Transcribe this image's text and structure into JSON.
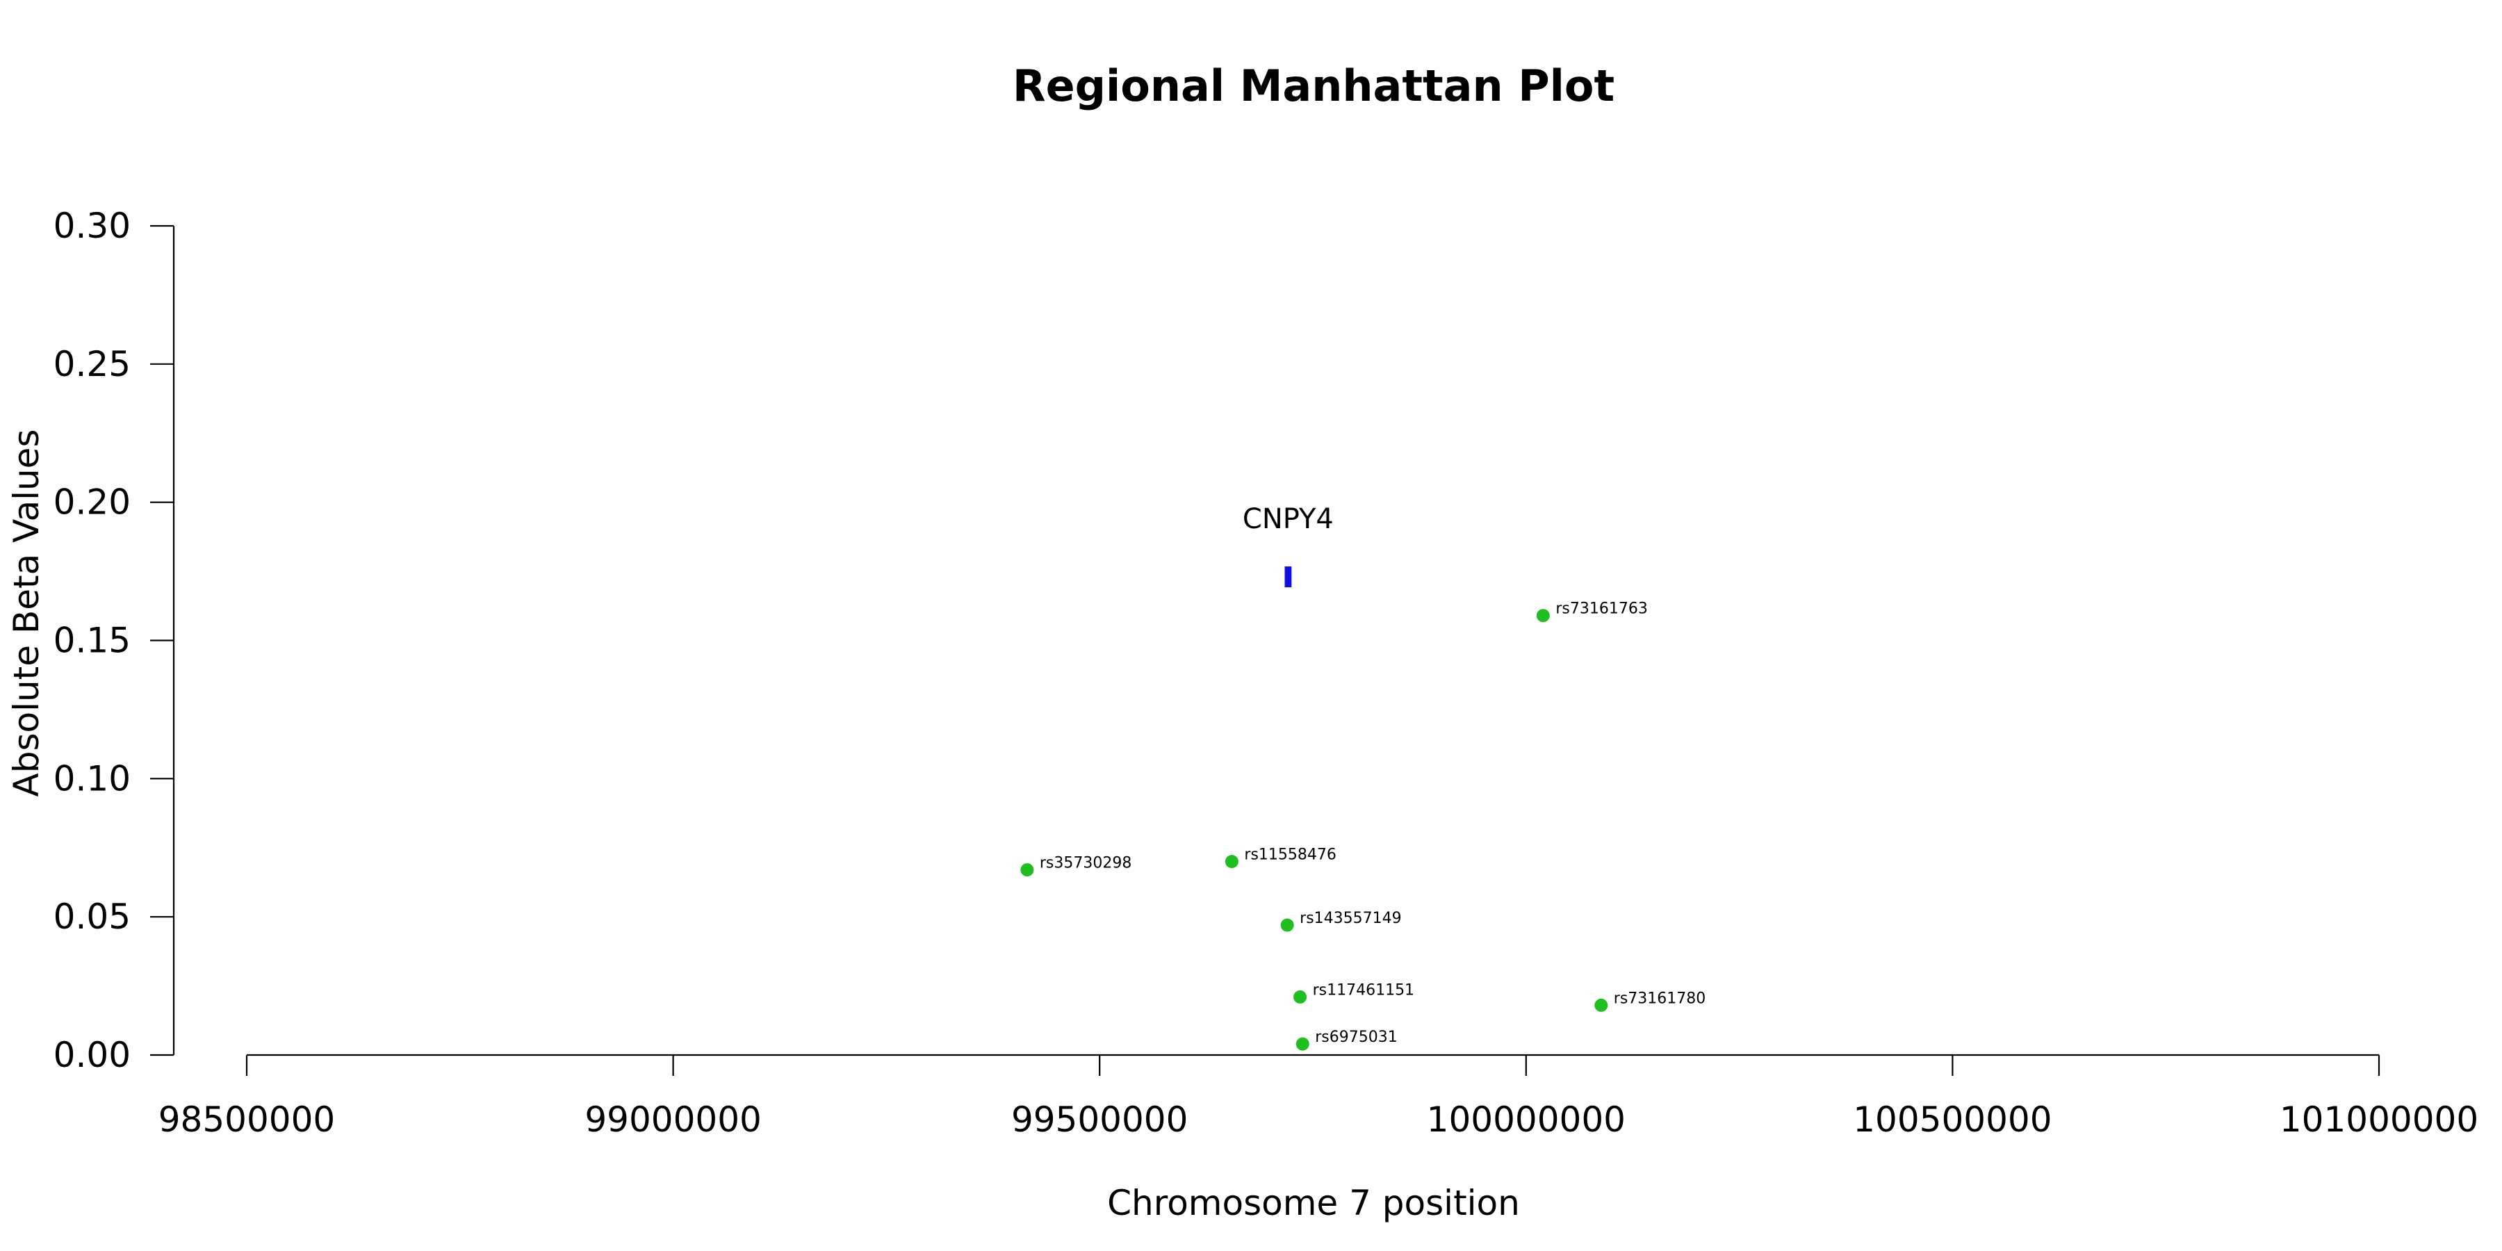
{
  "chart_data": {
    "type": "scatter",
    "title": "Regional Manhattan Plot",
    "xlabel": "Chromosome 7 position",
    "ylabel": "Absolute Beta Values",
    "xlim": [
      98500000,
      101000000
    ],
    "ylim": [
      0,
      0.3
    ],
    "x_ticks": [
      98500000,
      99000000,
      99500000,
      100000000,
      100500000,
      101000000
    ],
    "x_tick_labels": [
      "98500000",
      "99000000",
      "99500000",
      "100000000",
      "100500000",
      "101000000"
    ],
    "y_ticks": [
      0,
      0.05,
      0.1,
      0.15,
      0.2,
      0.25,
      0.3
    ],
    "y_tick_labels": [
      "0.00",
      "0.05",
      "0.10",
      "0.15",
      "0.20",
      "0.25",
      "0.30"
    ],
    "grid": false,
    "point_color": "#1fbf1f",
    "points": [
      {
        "label": "rs73161763",
        "x": 100020000,
        "y": 0.159
      },
      {
        "label": "rs35730298",
        "x": 99415000,
        "y": 0.067
      },
      {
        "label": "rs11558476",
        "x": 99655000,
        "y": 0.07
      },
      {
        "label": "rs143557149",
        "x": 99720000,
        "y": 0.047
      },
      {
        "label": "rs117461151",
        "x": 99735000,
        "y": 0.021
      },
      {
        "label": "rs73161780",
        "x": 100088000,
        "y": 0.018
      },
      {
        "label": "rs6975031",
        "x": 99738000,
        "y": 0.004
      }
    ],
    "genes": [
      {
        "name": "CNPY4",
        "start": 99717000,
        "end": 99725000,
        "y": 0.173,
        "color": "#1010e0"
      }
    ]
  }
}
